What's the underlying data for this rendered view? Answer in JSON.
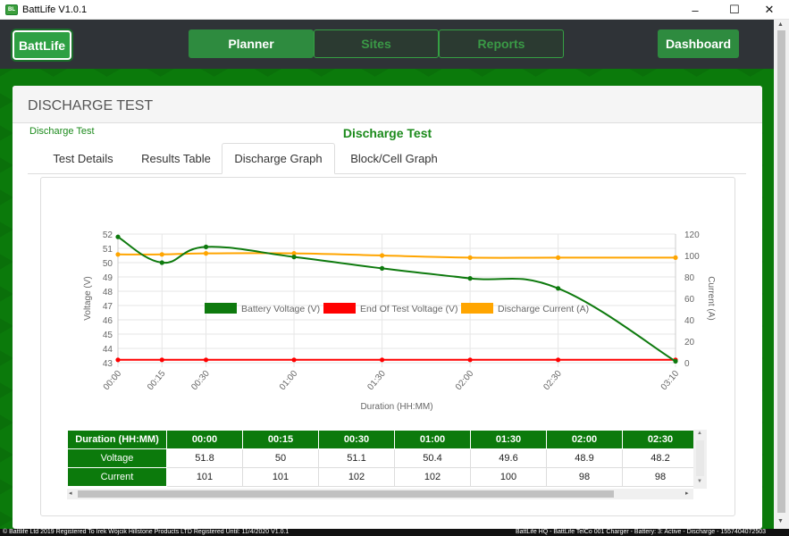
{
  "window": {
    "title": "BattLife V1.0.1",
    "minimize": "–",
    "maximize": "☐",
    "close": "✕"
  },
  "nav": {
    "logo": "BattLife",
    "items": [
      {
        "label": "Planner"
      },
      {
        "label": "Sites"
      },
      {
        "label": "Reports"
      }
    ],
    "dashboard": "Dashboard"
  },
  "page": {
    "header": "DISCHARGE TEST",
    "breadcrumb": "Discharge Test",
    "graph_title": "Discharge Test",
    "tabs": [
      {
        "label": "Test Details"
      },
      {
        "label": "Results Table"
      },
      {
        "label": "Discharge Graph"
      },
      {
        "label": "Block/Cell Graph"
      }
    ]
  },
  "chart_data": {
    "type": "line",
    "x": [
      "00:00",
      "00:15",
      "00:30",
      "01:00",
      "01:30",
      "02:00",
      "02:30",
      "03:10"
    ],
    "x_minutes": [
      0,
      15,
      30,
      60,
      90,
      120,
      150,
      190
    ],
    "series": [
      {
        "name": "Battery Voltage (V)",
        "color": "#0e7a0e",
        "axis": "left",
        "values": [
          51.8,
          50,
          51.1,
          50.4,
          49.6,
          48.9,
          48.2,
          43.1
        ]
      },
      {
        "name": "End Of Test Voltage (V)",
        "color": "#ff0000",
        "axis": "left",
        "values": [
          43.2,
          43.2,
          43.2,
          43.2,
          43.2,
          43.2,
          43.2,
          43.2
        ]
      },
      {
        "name": "Discharge Current (A)",
        "color": "#ffa500",
        "axis": "right",
        "values": [
          101,
          101,
          102,
          102,
          100,
          98,
          98,
          98
        ]
      }
    ],
    "xlabel": "Duration (HH:MM)",
    "ylabel": "Voltage (V)",
    "y2label": "Current (A)",
    "ylim": [
      43,
      52
    ],
    "y_ticks": [
      "52",
      "51",
      "50",
      "49",
      "48",
      "47",
      "46",
      "45",
      "44",
      "43"
    ],
    "y2lim": [
      0,
      120
    ],
    "y2_ticks": [
      "120",
      "100",
      "80",
      "60",
      "40",
      "20",
      "0"
    ],
    "grid": true,
    "legend": "top"
  },
  "table": {
    "header_label": "Duration (HH:MM)",
    "columns": [
      "00:00",
      "00:15",
      "00:30",
      "01:00",
      "01:30",
      "02:00",
      "02:30"
    ],
    "rows": [
      {
        "label": "Voltage",
        "values": [
          "51.8",
          "50",
          "51.1",
          "50.4",
          "49.6",
          "48.9",
          "48.2"
        ]
      },
      {
        "label": "Current",
        "values": [
          "101",
          "101",
          "102",
          "102",
          "100",
          "98",
          "98"
        ]
      }
    ]
  },
  "footer": {
    "left": "© Battlife Ltd 2019   Registered To   Irek Wójcik   Hillstone Products LTD   Registered Until: 11/4/2020 V1.0.1",
    "right": "BattLife HQ - BattLife TelCo 001 Charger - Battery: 3: Active - Discharge - 1557404072503"
  }
}
